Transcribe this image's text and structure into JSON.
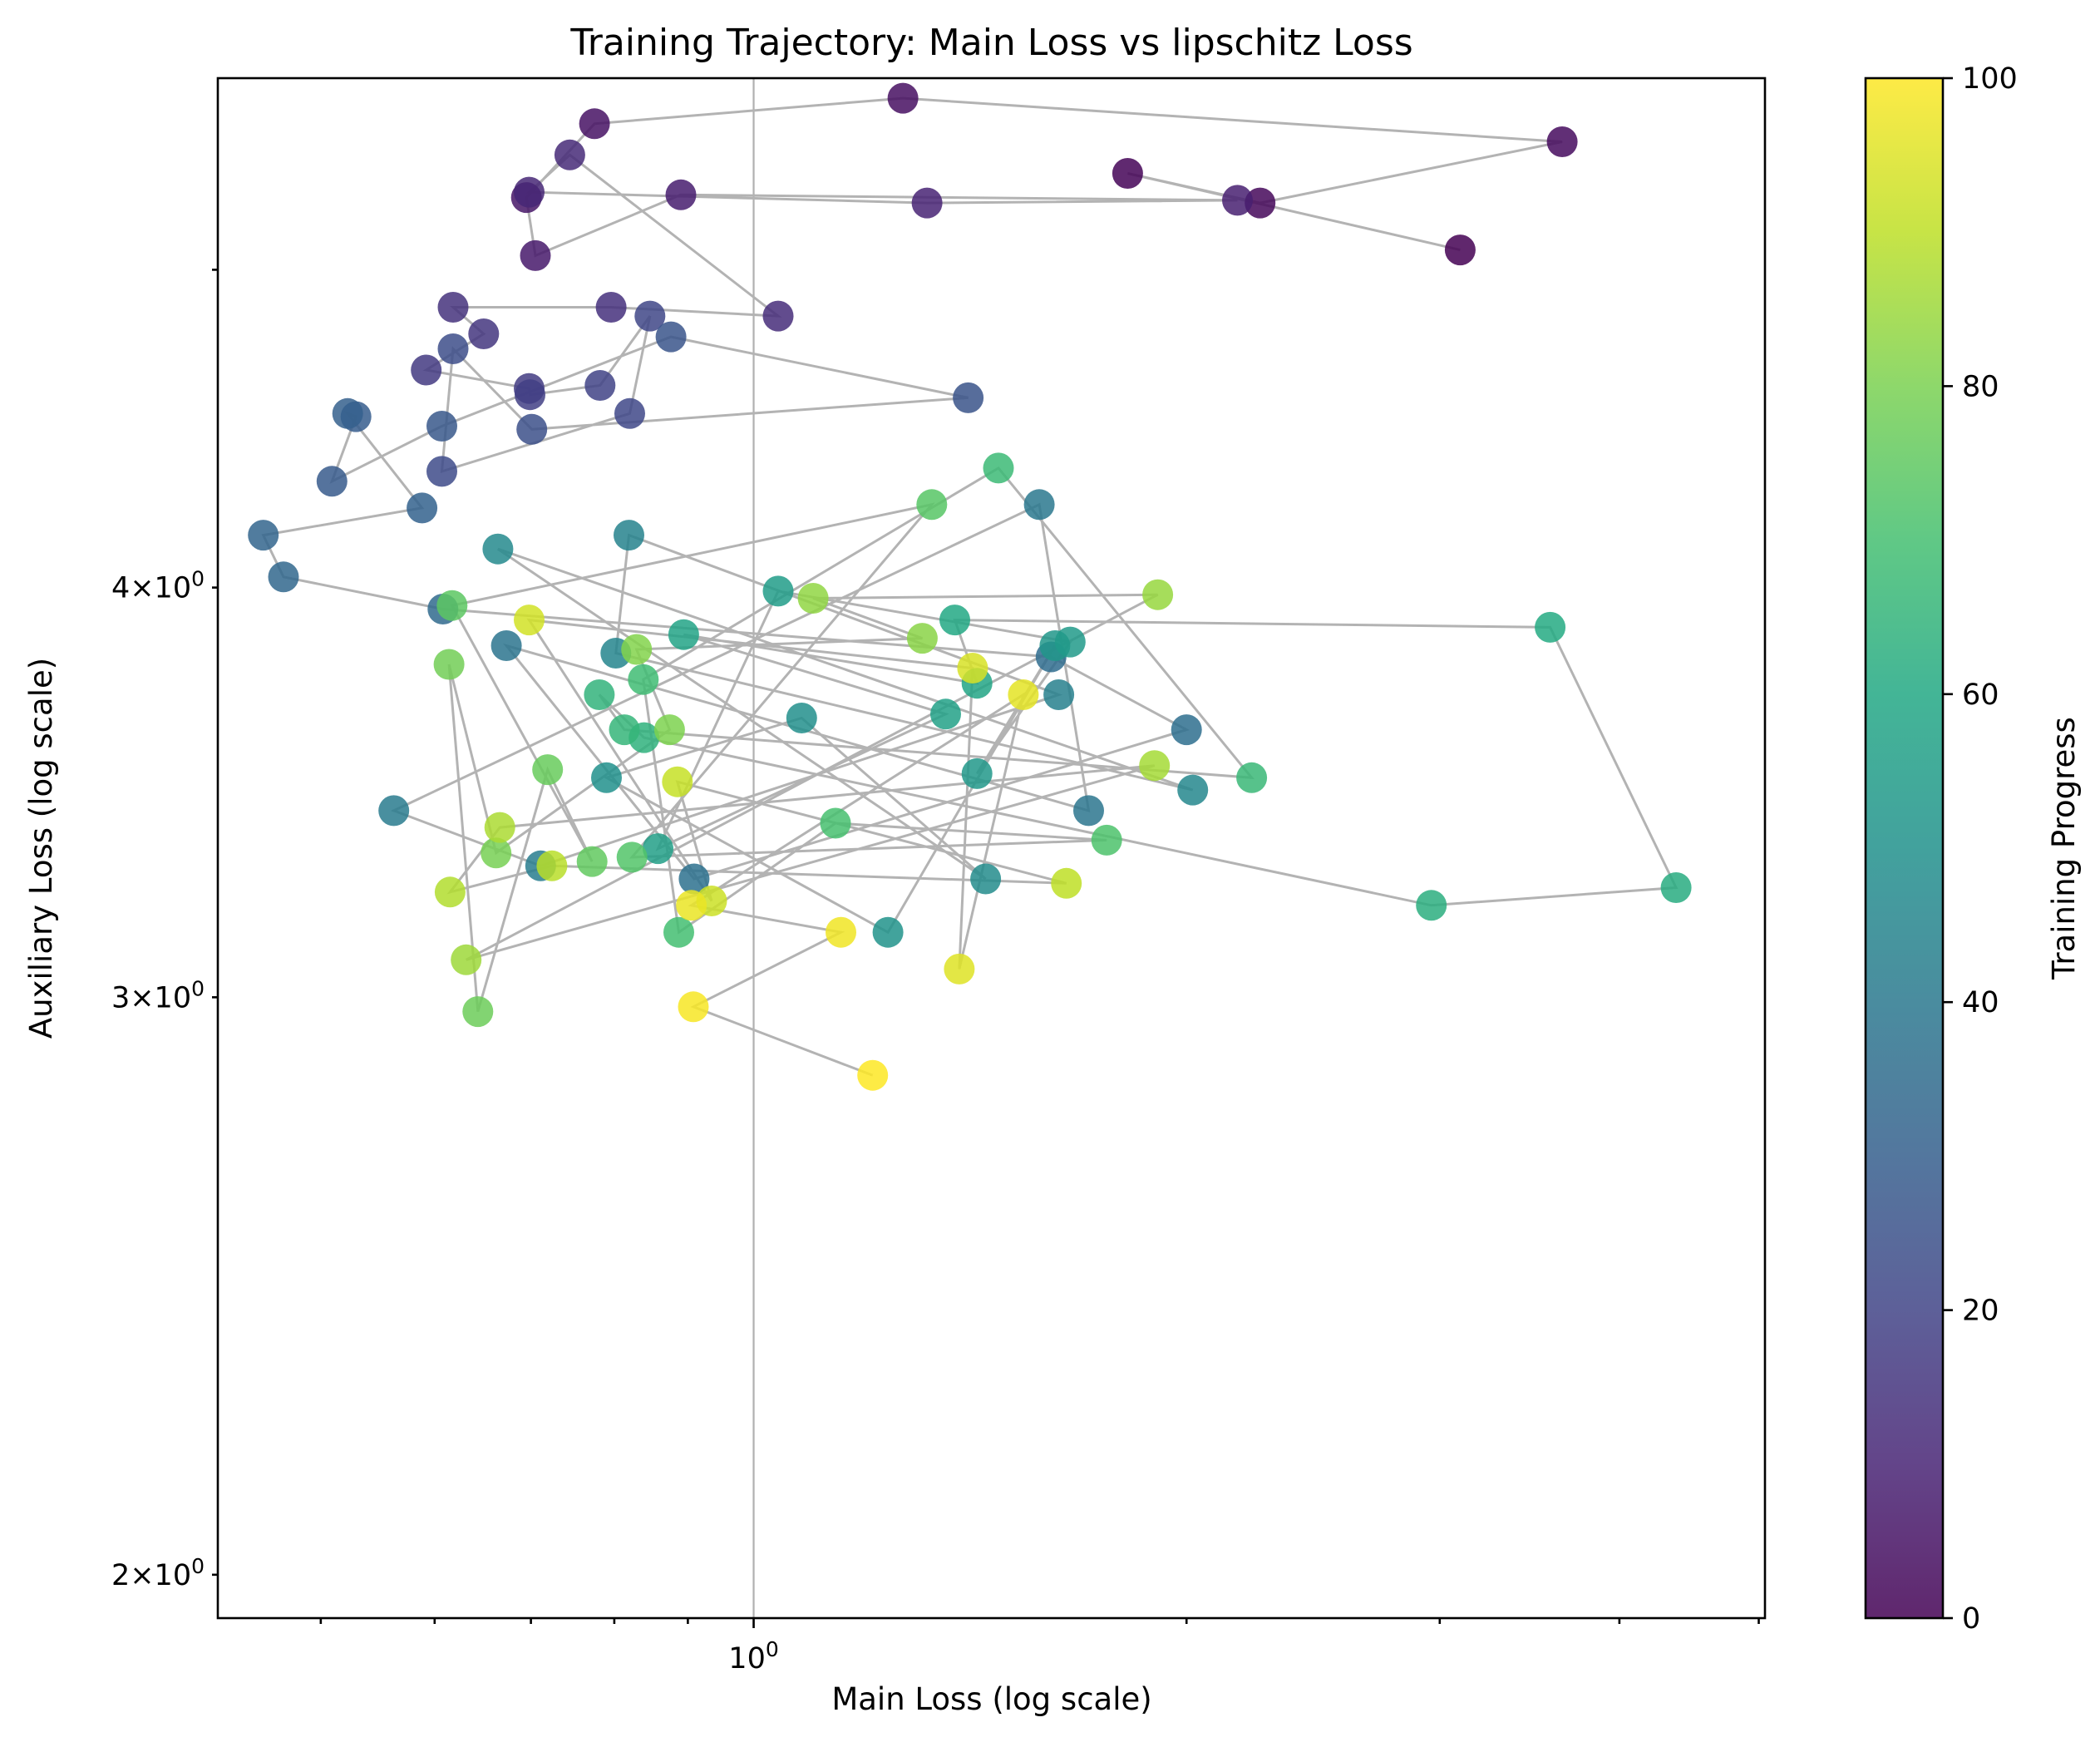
{
  "chart_data": {
    "type": "scatter",
    "title": "Training Trajectory: Main Loss vs lipschitz Loss",
    "xlabel": "Main Loss (log scale)",
    "ylabel": "Auxiliary Loss (log scale)",
    "xscale": "log",
    "yscale": "log",
    "xlim": [
      0.424,
      5.05
    ],
    "ylim": [
      1.94,
      5.72
    ],
    "x_tick_labels": [
      {
        "value": 1,
        "base": "10",
        "exp": "0"
      }
    ],
    "y_tick_labels": [
      {
        "value": 2,
        "mant": "2",
        "base": "10",
        "exp": "0"
      },
      {
        "value": 3,
        "mant": "3",
        "base": "10",
        "exp": "0"
      },
      {
        "value": 4,
        "mant": "4",
        "base": "10",
        "exp": "0"
      }
    ],
    "grid": "vertical line at x = 1",
    "connected": true,
    "line_color": "#b3b3b3",
    "colormap": "viridis",
    "colorbar": {
      "label": "Training Progress",
      "range": [
        0,
        100
      ],
      "tick_labels": [
        "0",
        "20",
        "40",
        "60",
        "80",
        "100"
      ]
    },
    "points": {
      "x": [
        3.1,
        1.82,
        2.25,
        3.65,
        1.27,
        0.775,
        0.695,
        0.705,
        0.89,
        2.17,
        1.32,
        0.698,
        0.745,
        1.04,
        0.796,
        0.618,
        0.649,
        0.592,
        0.698,
        0.699,
        0.782,
        0.847,
        0.82,
        0.607,
        0.618,
        0.701,
        1.41,
        0.876,
        0.607,
        0.509,
        0.529,
        0.522,
        0.588,
        0.456,
        0.471,
        0.608,
        1.61,
        2.0,
        0.909,
        0.673,
        1.71,
        1.58,
        0.562,
        0.711,
        1.63,
        0.819,
        0.802,
        2.02,
        0.664,
        1.45,
        1.08,
        0.79,
        1.24,
        1.62,
        1.43,
        1.66,
        1.04,
        0.858,
        1.36,
        0.894,
        1.43,
        1.38,
        3.58,
        4.38,
        2.96,
        0.839,
        0.781,
        0.813,
        2.22,
        1.48,
        0.838,
        0.887,
        1.14,
        1.76,
        0.823,
        1.33,
        0.617,
        0.772,
        0.719,
        0.643,
        0.614,
        0.662,
        0.874,
        0.829,
        1.31,
        1.1,
        1.91,
        0.631,
        1.9,
        0.666,
        0.615,
        0.724,
        1.65,
        0.885,
        0.935,
        0.698,
        1.42,
        1.39,
        1.54,
        0.905,
        1.15,
        0.908,
        1.21
      ],
      "y": [
        5.07,
        5.35,
        5.24,
        5.47,
        5.64,
        5.54,
        5.26,
        5.05,
        5.27,
        5.25,
        5.24,
        5.28,
        5.42,
        4.84,
        4.87,
        4.87,
        4.78,
        4.66,
        4.6,
        4.58,
        4.61,
        4.84,
        4.52,
        4.34,
        4.73,
        4.47,
        4.57,
        4.77,
        4.48,
        4.31,
        4.51,
        4.52,
        4.23,
        4.15,
        4.03,
        3.94,
        3.81,
        3.62,
        3.26,
        3.84,
        3.42,
        4.24,
        3.42,
        3.29,
        3.71,
        4.15,
        3.82,
        3.47,
        4.11,
        3.26,
        3.65,
        3.5,
        3.14,
        3.84,
        3.51,
        3.85,
        3.99,
        3.33,
        3.66,
        3.87,
        3.74,
        3.91,
        3.89,
        3.24,
        3.2,
        3.6,
        3.71,
        3.62,
        3.5,
        4.35,
        3.75,
        3.14,
        3.39,
        3.35,
        3.31,
        4.24,
        3.95,
        3.3,
        3.52,
        2.97,
        3.79,
        3.32,
        3.62,
        3.83,
        3.86,
        3.97,
        3.98,
        3.08,
        3.53,
        3.38,
        3.23,
        3.29,
        3.25,
        3.49,
        3.21,
        3.91,
        3.78,
        3.06,
        3.71,
        3.2,
        3.14,
        2.98,
        2.84
      ]
    }
  }
}
